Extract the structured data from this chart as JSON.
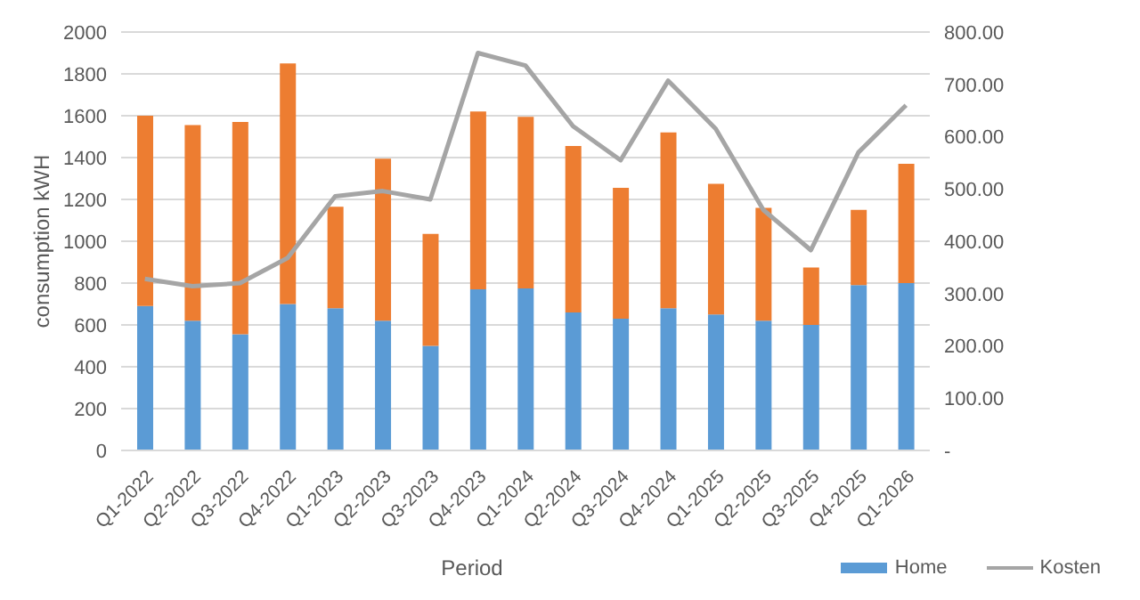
{
  "chart_data": {
    "type": "bar",
    "stacked": true,
    "xlabel": "Period",
    "ylabel": "consumption kWH",
    "categories": [
      "Q1-2022",
      "Q2-2022",
      "Q3-2022",
      "Q4-2022",
      "Q1-2023",
      "Q2-2023",
      "Q3-2023",
      "Q4-2023",
      "Q1-2024",
      "Q2-2024",
      "Q3-2024",
      "Q4-2024",
      "Q1-2025",
      "Q2-2025",
      "Q3-2025",
      "Q4-2025",
      "Q1-2026"
    ],
    "series": [
      {
        "name": "Home",
        "color": "#5b9bd5",
        "values": [
          690,
          620,
          555,
          700,
          680,
          620,
          500,
          770,
          775,
          660,
          630,
          680,
          650,
          620,
          600,
          790,
          800
        ]
      },
      {
        "color": "#ed7d31",
        "values": [
          910,
          935,
          1015,
          1150,
          485,
          775,
          535,
          850,
          820,
          795,
          625,
          840,
          625,
          540,
          275,
          360,
          570
        ]
      },
      {
        "name": "Kosten",
        "type": "line",
        "axis": "y2",
        "color": "#a5a5a5",
        "values": [
          328,
          314,
          320,
          368,
          486,
          496,
          480,
          760,
          736,
          620,
          555,
          707,
          615,
          460,
          383,
          570,
          660
        ]
      }
    ],
    "ylim": [
      0,
      2000
    ],
    "yticks": [
      0,
      200,
      400,
      600,
      800,
      1000,
      1200,
      1400,
      1600,
      1800,
      2000
    ],
    "y2lim": [
      0,
      800
    ],
    "y2ticks": [
      {
        "value": 0,
        "label": "-"
      },
      {
        "value": 100,
        "label": "100.00"
      },
      {
        "value": 200,
        "label": "200.00"
      },
      {
        "value": 300,
        "label": "300.00"
      },
      {
        "value": 400,
        "label": "400.00"
      },
      {
        "value": 500,
        "label": "500.00"
      },
      {
        "value": 600,
        "label": "600.00"
      },
      {
        "value": 700,
        "label": "700.00"
      },
      {
        "value": 800,
        "label": "800.00"
      }
    ],
    "grid": "y",
    "legend": "bottom right",
    "marker": "none",
    "line_style": "solid"
  }
}
